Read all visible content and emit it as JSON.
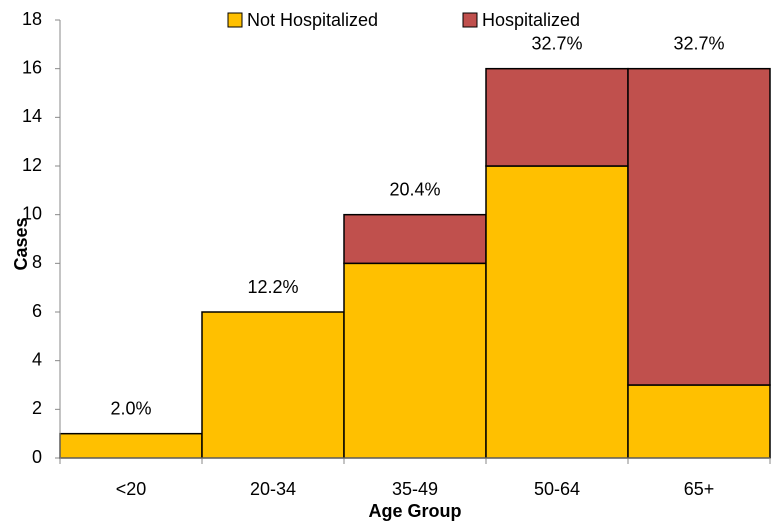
{
  "chart_data": {
    "type": "stacked_bar",
    "x_label": "Age Group",
    "y_label": "Cases",
    "categories": [
      "<20",
      "20-34",
      "35-49",
      "50-64",
      "65+"
    ],
    "series": [
      {
        "name": "Not Hospitalized",
        "color": "#FFC000",
        "values": [
          1,
          6,
          8,
          12,
          3
        ]
      },
      {
        "name": "Hospitalized",
        "color": "#C0504D",
        "values": [
          0,
          0,
          2,
          4,
          13
        ]
      }
    ],
    "annotations": [
      "2.0%",
      "12.2%",
      "20.4%",
      "32.7%",
      "32.7%"
    ],
    "ylim": [
      0,
      18
    ],
    "yticks": [
      0,
      2,
      4,
      6,
      8,
      10,
      12,
      14,
      16,
      18
    ],
    "legend": "top"
  }
}
